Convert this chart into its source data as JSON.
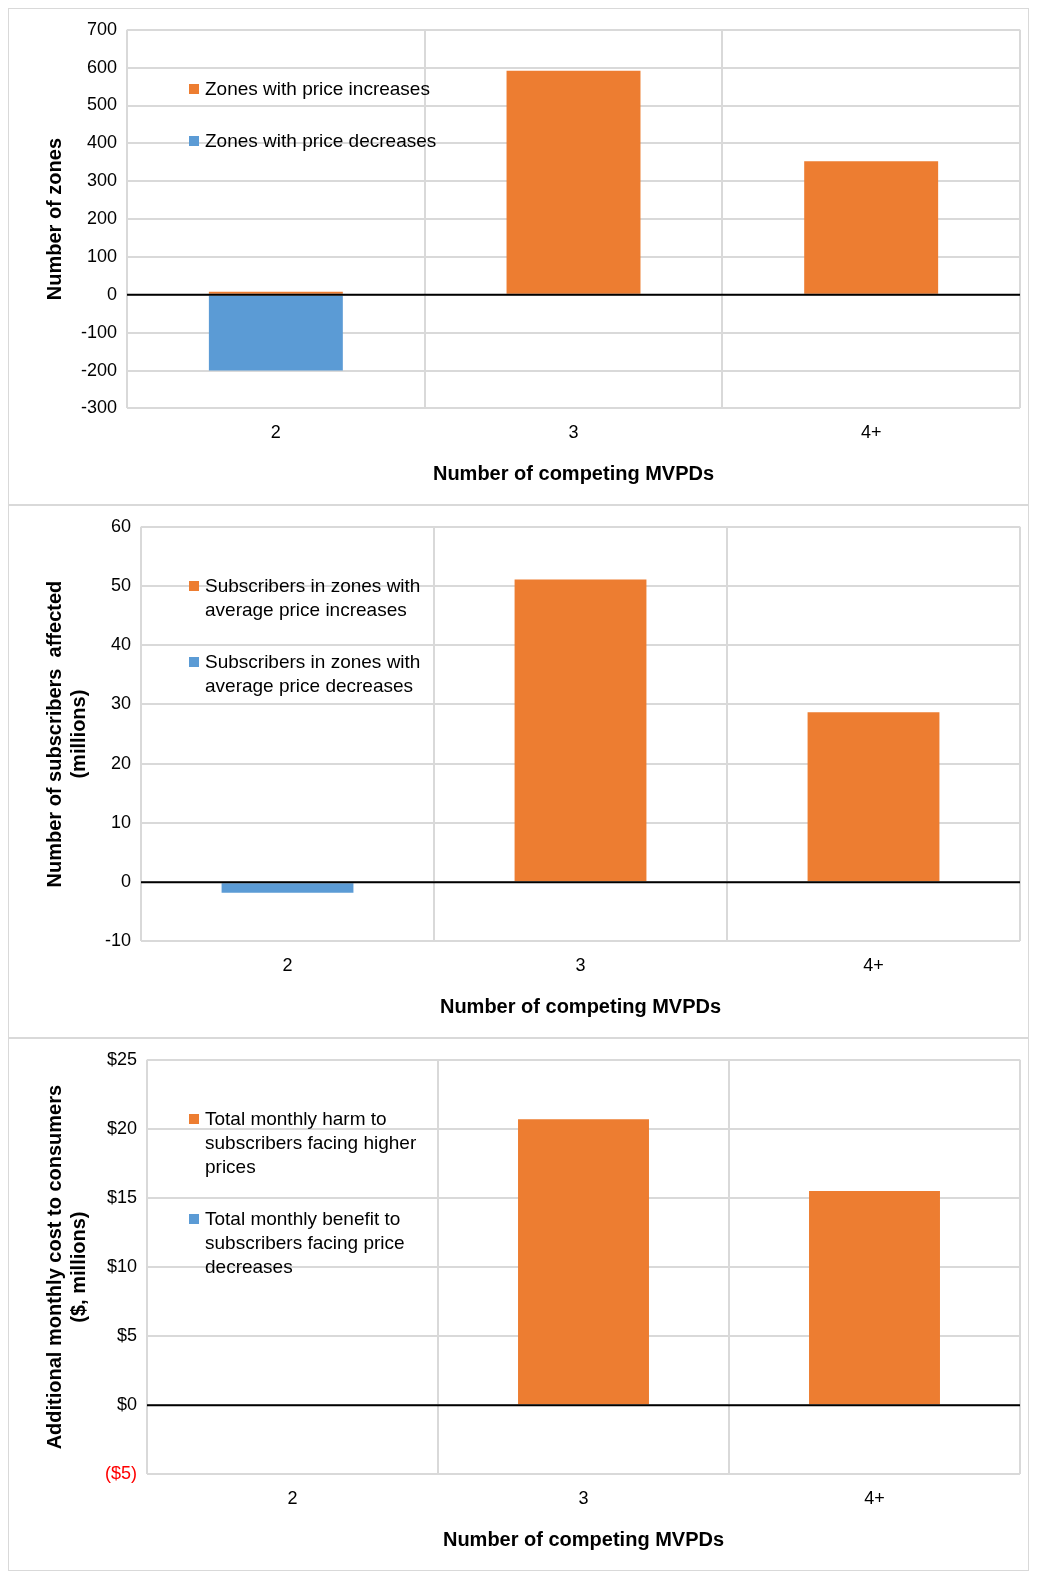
{
  "chart_data": [
    {
      "type": "bar",
      "xlabel": "Number of competing MVPDs",
      "ylabel": "Number of zones",
      "categories": [
        "2",
        "3",
        "4+"
      ],
      "stacked": true,
      "series": [
        {
          "name": "Zones with price increases",
          "color": "#ed7d31",
          "values": [
            8,
            592,
            353
          ]
        },
        {
          "name": "Zones with price decreases",
          "color": "#5b9bd5",
          "values": [
            -200,
            0,
            0
          ]
        }
      ],
      "ylim": [
        -300,
        700
      ],
      "yticks": [
        -300,
        -200,
        -100,
        0,
        100,
        200,
        300,
        400,
        500,
        600,
        700
      ],
      "grid": true,
      "legend": "top left"
    },
    {
      "type": "bar",
      "xlabel": "Number of competing MVPDs",
      "ylabel": "Number of subscribers  affected (millions)",
      "categories": [
        "2",
        "3",
        "4+"
      ],
      "stacked": true,
      "series": [
        {
          "name": "Subscribers in zones with average price increases",
          "color": "#ed7d31",
          "values": [
            0,
            51.1,
            28.7
          ]
        },
        {
          "name": "Subscribers in zones with average price decreases",
          "color": "#5b9bd5",
          "values": [
            -1.8,
            0,
            0
          ]
        }
      ],
      "ylim": [
        -10,
        60
      ],
      "yticks": [
        -10,
        0,
        10,
        20,
        30,
        40,
        50,
        60
      ],
      "grid": true,
      "legend": "top left"
    },
    {
      "type": "bar",
      "xlabel": "Number of competing MVPDs",
      "ylabel": "Additional monthly cost to consumers ($, millions)",
      "categories": [
        "2",
        "3",
        "4+"
      ],
      "stacked": true,
      "series": [
        {
          "name": "Total monthly harm to subscribers facing higher prices",
          "color": "#ed7d31",
          "values": [
            0,
            20.7,
            15.5
          ]
        },
        {
          "name": "Total monthly benefit to subscribers facing price decreases",
          "color": "#5b9bd5",
          "values": [
            0,
            0,
            0
          ]
        }
      ],
      "ylim": [
        -5,
        25
      ],
      "yticks": [
        {
          "value": -5,
          "label": "($5)"
        },
        {
          "value": 0,
          "label": "$0"
        },
        {
          "value": 5,
          "label": "$5"
        },
        {
          "value": 10,
          "label": "$10"
        },
        {
          "value": 15,
          "label": "$15"
        },
        {
          "value": 20,
          "label": "$20"
        },
        {
          "value": 25,
          "label": "$25"
        }
      ],
      "grid": true,
      "legend": "top left"
    }
  ]
}
